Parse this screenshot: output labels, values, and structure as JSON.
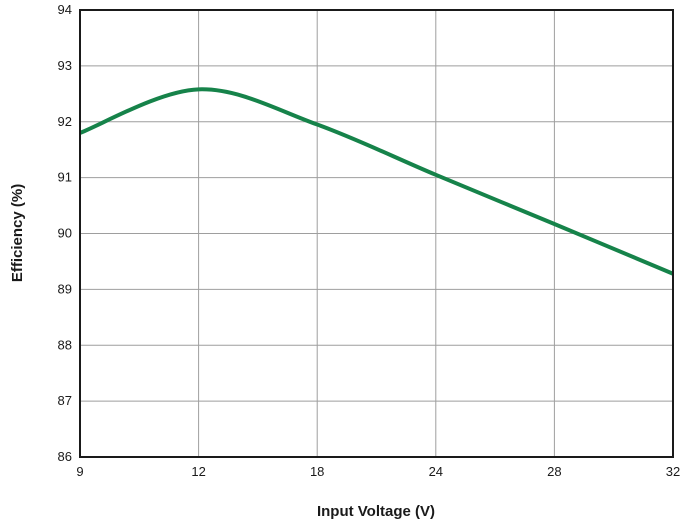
{
  "chart_data": {
    "type": "line",
    "xlabel": "Input Voltage (V)",
    "ylabel": "Efficiency (%)",
    "x_categories": [
      "9",
      "12",
      "18",
      "24",
      "28",
      "32"
    ],
    "y_ticks": [
      "86",
      "87",
      "88",
      "89",
      "90",
      "91",
      "92",
      "93",
      "94"
    ],
    "ylim": [
      86,
      94
    ],
    "grid": true,
    "series": [
      {
        "color": "#16834a",
        "points": [
          {
            "x": "9",
            "y": 91.8
          },
          {
            "x": "12",
            "y": 92.58
          },
          {
            "x": "18",
            "y": 91.95
          },
          {
            "x": "24",
            "y": 91.05
          },
          {
            "x": "28",
            "y": 90.17
          },
          {
            "x": "32",
            "y": 89.28
          }
        ]
      }
    ]
  }
}
